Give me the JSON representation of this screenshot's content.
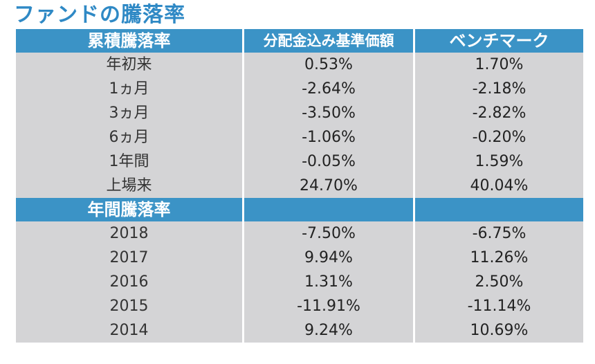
{
  "title": "ファンドの騰落率",
  "cumulative": {
    "header": {
      "label": "累積騰落率",
      "col_nav": "分配金込み基準価額",
      "col_bench": "ベンチマーク"
    },
    "rows": [
      {
        "label": "年初来",
        "nav": "0.53%",
        "bench": "1.70%"
      },
      {
        "label": "1ヵ月",
        "nav": "-2.64%",
        "bench": "-2.18%"
      },
      {
        "label": "3ヵ月",
        "nav": "-3.50%",
        "bench": "-2.82%"
      },
      {
        "label": "6ヵ月",
        "nav": "-1.06%",
        "bench": "-0.20%"
      },
      {
        "label": "1年間",
        "nav": "-0.05%",
        "bench": "1.59%"
      },
      {
        "label": "上場来",
        "nav": "24.70%",
        "bench": "40.04%"
      }
    ]
  },
  "annual": {
    "header": {
      "label": "年間騰落率",
      "col_nav": "",
      "col_bench": ""
    },
    "rows": [
      {
        "label": "2018",
        "nav": "-7.50%",
        "bench": "-6.75%"
      },
      {
        "label": "2017",
        "nav": "9.94%",
        "bench": "11.26%"
      },
      {
        "label": "2016",
        "nav": "1.31%",
        "bench": "2.50%"
      },
      {
        "label": "2015",
        "nav": "-11.91%",
        "bench": "-11.14%"
      },
      {
        "label": "2014",
        "nav": "9.24%",
        "bench": "10.69%"
      }
    ]
  },
  "colors": {
    "title": "#2f89c5",
    "header_bg": "#3b93c6",
    "row_bg": "#d4d4d6"
  }
}
